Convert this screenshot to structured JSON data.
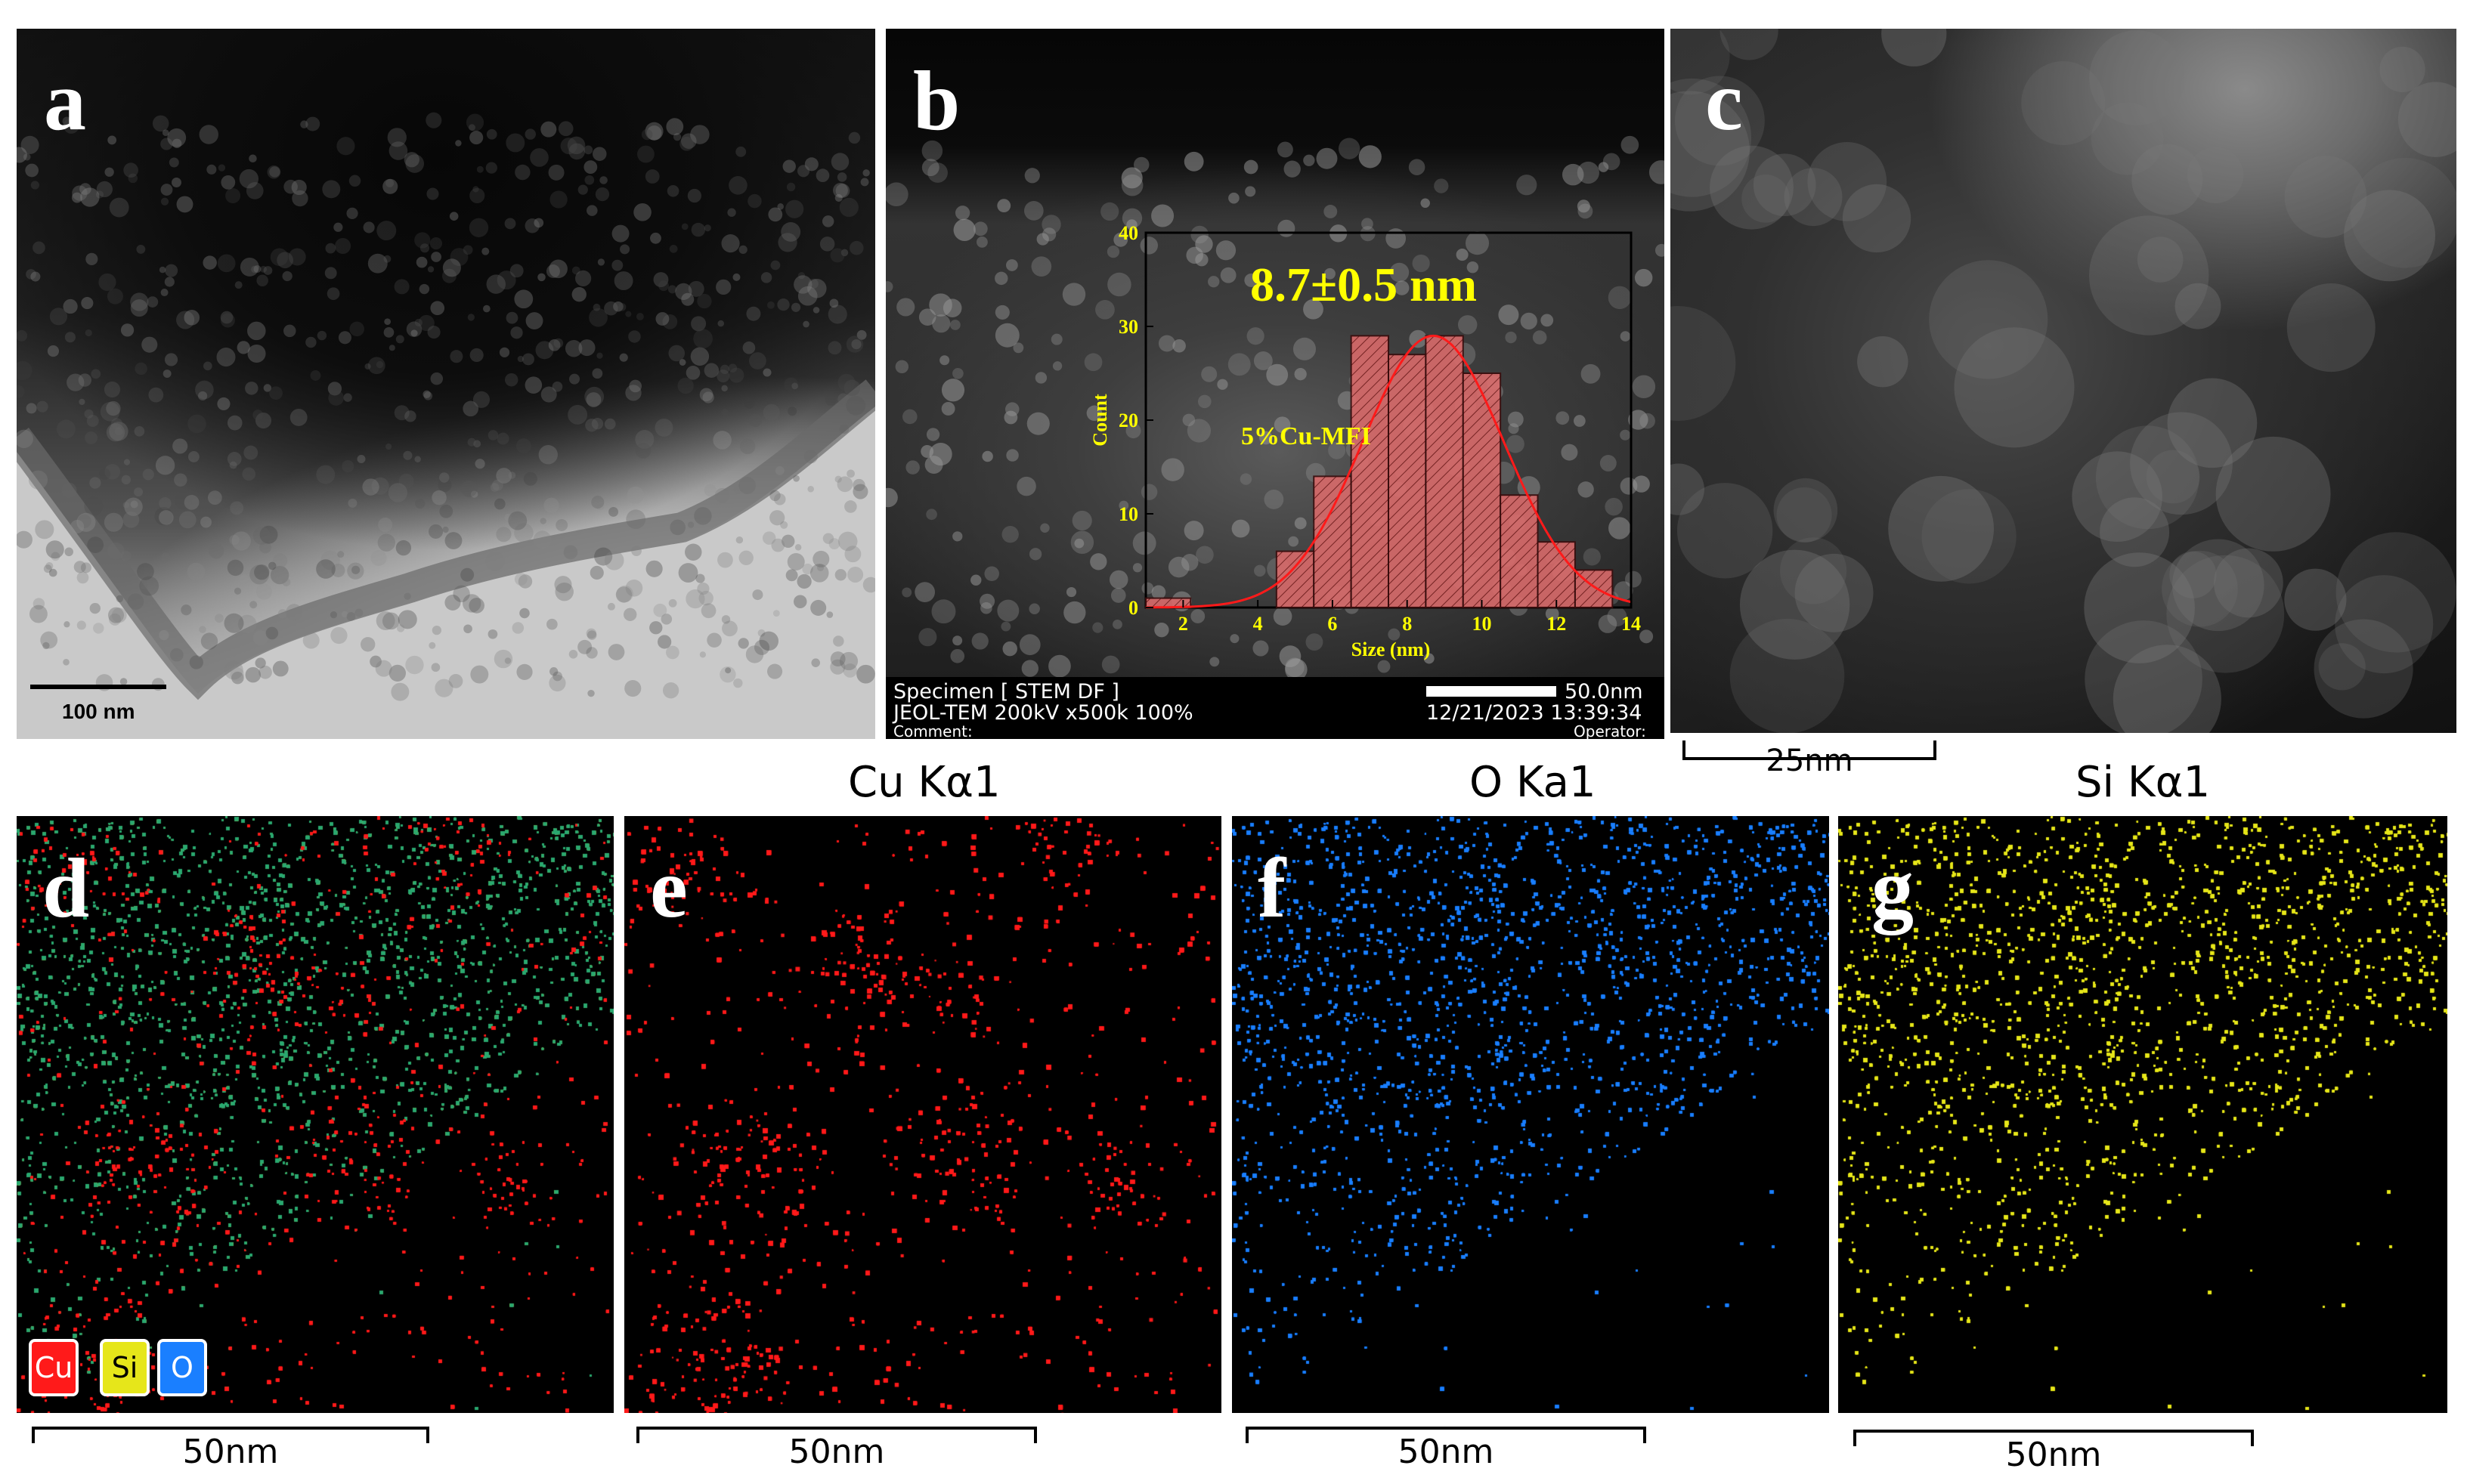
{
  "panels": {
    "a": {
      "letter": "a",
      "scale_label": "100 nm"
    },
    "b": {
      "letter": "b",
      "footer": {
        "specimen": "Specimen [ STEM DF ]",
        "instrument": "JEOL-TEM 200kV x500k 100%",
        "comment": "Comment:",
        "scale": "50.0nm",
        "datetime": "12/21/2023 13:39:34",
        "operator": "Operator:"
      }
    },
    "c": {
      "letter": "c",
      "scale_label": "25nm"
    },
    "d": {
      "letter": "d",
      "scale_label": "50nm",
      "legend": [
        "Cu",
        "Si",
        "O"
      ]
    },
    "e": {
      "letter": "e",
      "title": "Cu Kα1",
      "scale_label": "50nm"
    },
    "f": {
      "letter": "f",
      "title": "O Ka1",
      "scale_label": "50nm"
    },
    "g": {
      "letter": "g",
      "title": "Si Kα1",
      "scale_label": "50nm"
    }
  },
  "colors": {
    "cu": "#ff1a1a",
    "o": "#1a7fff",
    "si": "#e6e61a",
    "inset_text": "#ffff00",
    "hist_bar": "#d96b6b",
    "fit_curve": "#ff1a1a"
  },
  "chart_data": {
    "type": "bar",
    "annotation": "8.7±0.5 nm",
    "label": "5%Cu-MFI",
    "xlabel": "Size (nm)",
    "ylabel": "Count",
    "xlim": [
      1,
      14
    ],
    "ylim": [
      0,
      40
    ],
    "xticks": [
      2,
      4,
      6,
      8,
      10,
      12,
      14
    ],
    "yticks": [
      0,
      10,
      20,
      30,
      40
    ],
    "bin_edges": [
      1,
      2.2,
      3.5,
      4.5,
      5.5,
      6.5,
      7.5,
      8.5,
      9.5,
      10.5,
      11.5,
      12.5,
      13.5
    ],
    "values": [
      1,
      0,
      0,
      6,
      14,
      29,
      27,
      29,
      25,
      12,
      7,
      4
    ],
    "fit": {
      "type": "gaussian",
      "center": 8.7,
      "sigma": 1.9,
      "peak": 29
    }
  }
}
